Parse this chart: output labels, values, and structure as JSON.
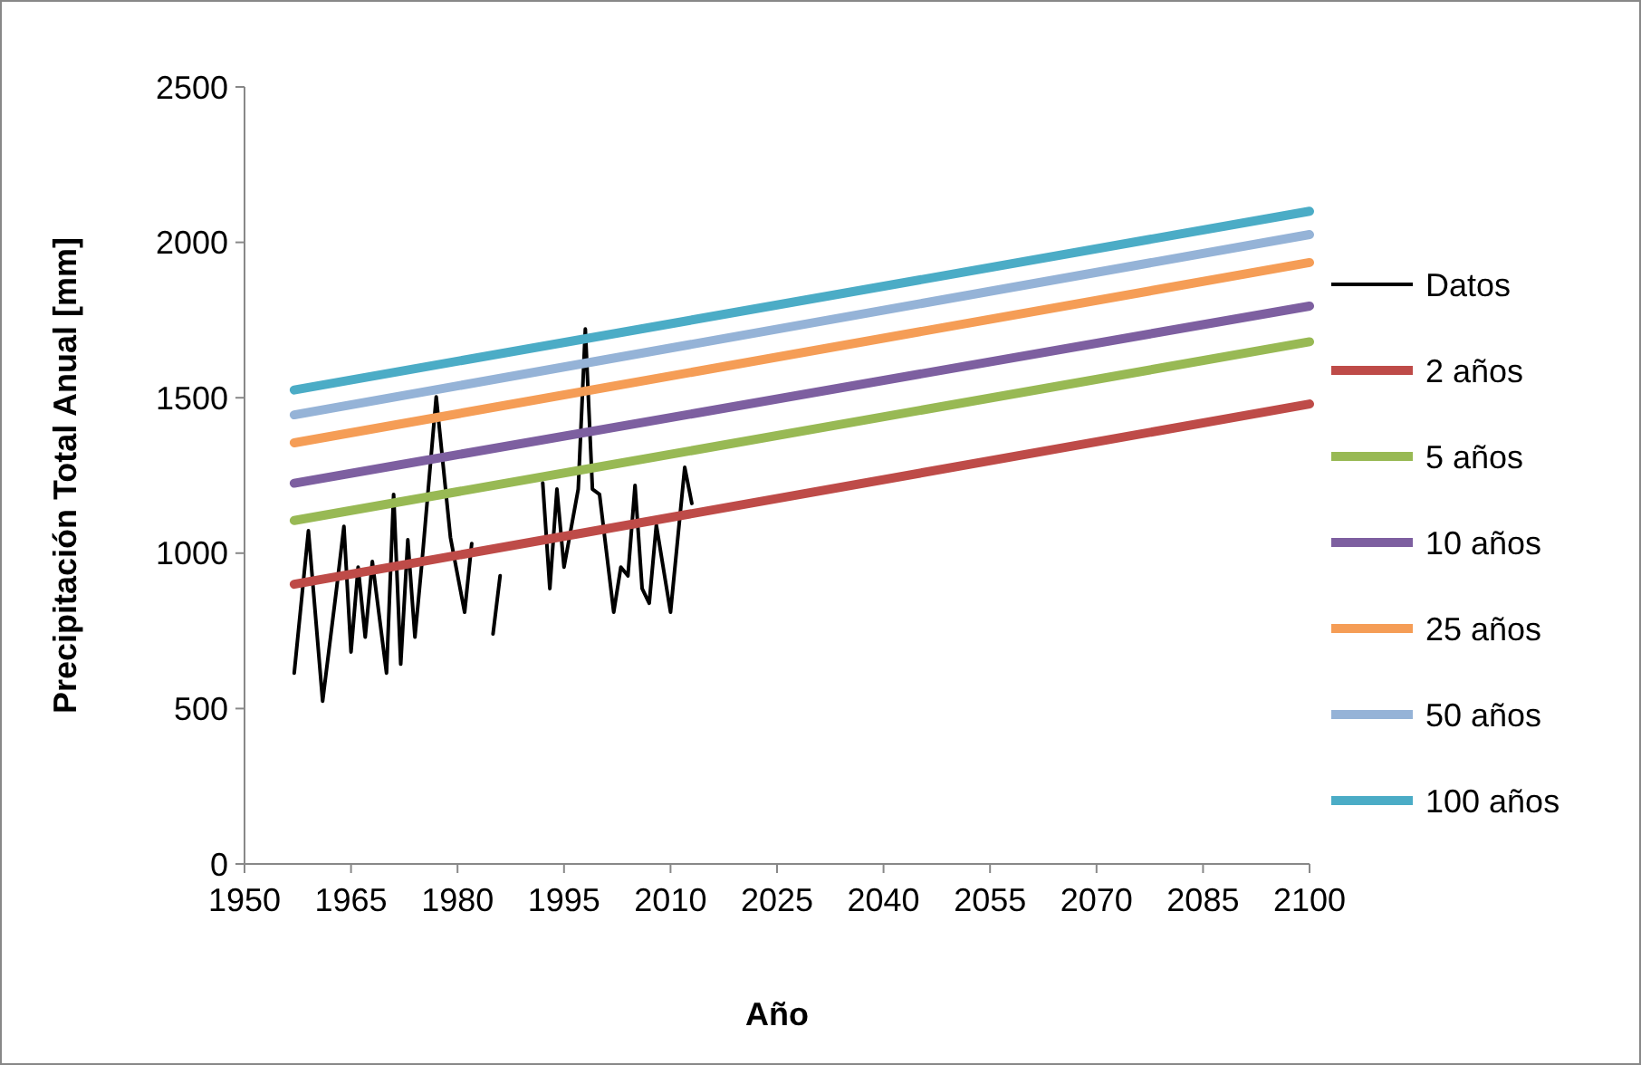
{
  "chart_data": {
    "type": "line",
    "xlabel": "Año",
    "ylabel": "Precipitación Total Anual [mm]",
    "xlim": [
      1950,
      2100
    ],
    "xticks": [
      1950,
      1965,
      1980,
      1995,
      2010,
      2025,
      2040,
      2055,
      2070,
      2085,
      2100
    ],
    "ylim": [
      0,
      2500
    ],
    "yticks": [
      0,
      500,
      1000,
      1500,
      2000,
      2500
    ],
    "grid": false,
    "legend": "right",
    "marker": "none",
    "line_style": "solid",
    "series": [
      {
        "name": "Datos",
        "color": "#000000",
        "x": [
          1957,
          1959,
          1961,
          1963,
          1964,
          1965,
          1966,
          1967,
          1968,
          1970,
          1971,
          1972,
          1973,
          1974,
          1975,
          1977,
          1979,
          1981,
          1982,
          1983,
          1985,
          1986,
          1987,
          1992,
          1993,
          1994,
          1995,
          1997,
          1998,
          1999,
          2000,
          2002,
          2003,
          2004,
          2005,
          2006,
          2007,
          2008,
          2010,
          2012,
          2013
        ],
        "values": [
          614,
          1072,
          524,
          892,
          1086,
          682,
          955,
          730,
          973,
          614,
          1189,
          643,
          1043,
          730,
          973,
          1503,
          1051,
          810,
          1031,
          null,
          740,
          927,
          null,
          1226,
          886,
          1206,
          955,
          1206,
          1721,
          1206,
          1189,
          810,
          955,
          927,
          1218,
          886,
          839,
          1090,
          810,
          1276,
          1160
        ]
      },
      {
        "name": "2 años",
        "color": "#be4b48",
        "x": [
          1957,
          2100
        ],
        "values": [
          900,
          1480
        ]
      },
      {
        "name": "5 años",
        "color": "#98b954",
        "x": [
          1957,
          2100
        ],
        "values": [
          1105,
          1680
        ]
      },
      {
        "name": "10 años",
        "color": "#7d5fa0",
        "x": [
          1957,
          2100
        ],
        "values": [
          1225,
          1795
        ]
      },
      {
        "name": "25 años",
        "color": "#f59d56",
        "x": [
          1957,
          2100
        ],
        "values": [
          1355,
          1935
        ]
      },
      {
        "name": "50 años",
        "color": "#95b3d7",
        "x": [
          1957,
          2100
        ],
        "values": [
          1445,
          2025
        ]
      },
      {
        "name": "100 años",
        "color": "#4bacc6",
        "x": [
          1957,
          2100
        ],
        "values": [
          1525,
          2100
        ]
      }
    ]
  }
}
